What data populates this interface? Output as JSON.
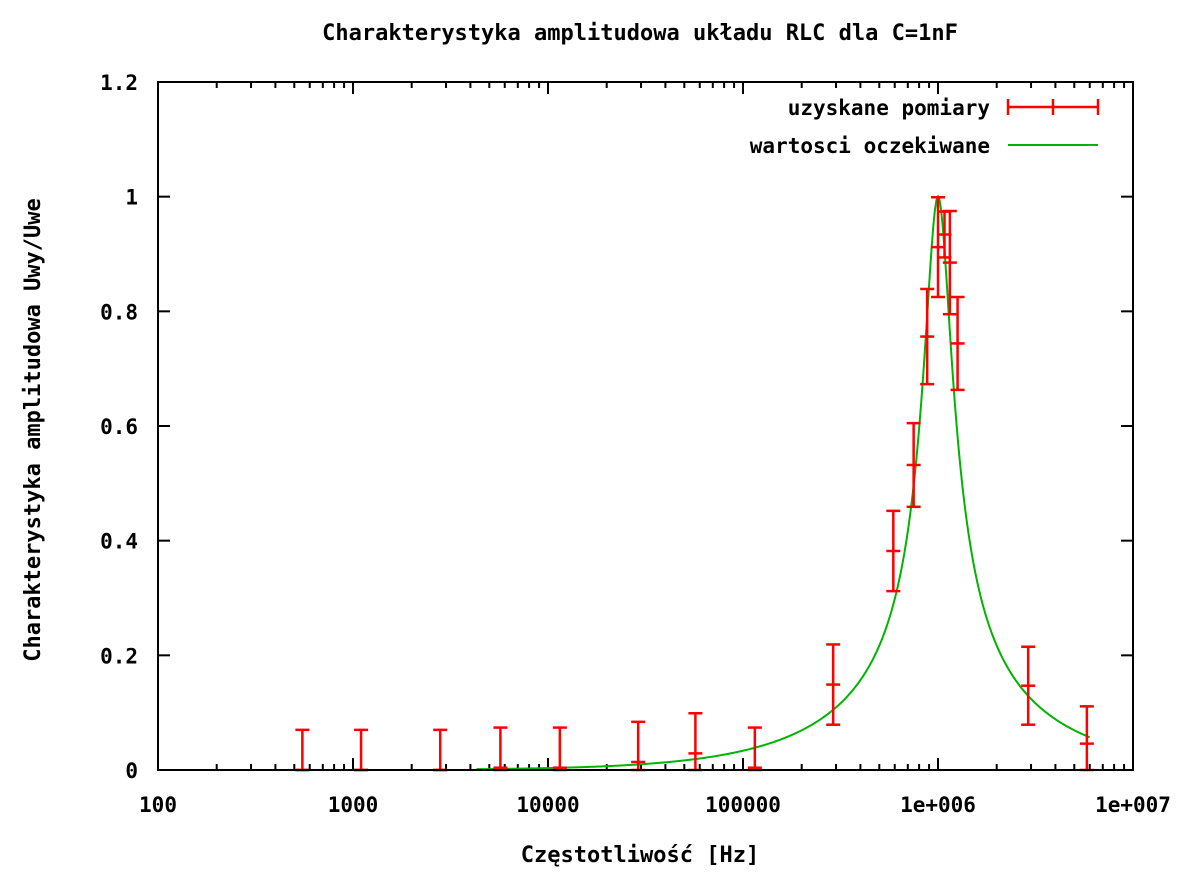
{
  "chart_data": {
    "type": "scatter",
    "title": "Charakterystyka amplitudowa układu RLC dla C=1nF",
    "xlabel": "Częstotliwość [Hz]",
    "ylabel": "Charakterystyka amplitudowa Uwy/Uwe",
    "x_scale": "log",
    "xlim": [
      100,
      10000000
    ],
    "ylim": [
      0,
      1.2
    ],
    "x_tick_labels": [
      "100",
      "1000",
      "10000",
      "100000",
      "1e+006",
      "1e+007"
    ],
    "y_tick_labels": [
      "0",
      "0.2",
      "0.4",
      "0.6",
      "0.8",
      "1",
      "1.2"
    ],
    "grid": false,
    "legend_position": "top-right",
    "series": [
      {
        "name": "uzyskane pomiary",
        "style": "errorbars",
        "color": "#ff0000",
        "points": [
          {
            "x": 550,
            "y": 0.0,
            "err": 0.07
          },
          {
            "x": 1100,
            "y": 0.0,
            "err": 0.07
          },
          {
            "x": 2800,
            "y": 0.0,
            "err": 0.07
          },
          {
            "x": 5700,
            "y": 0.004,
            "err": 0.07
          },
          {
            "x": 11500,
            "y": 0.004,
            "err": 0.07
          },
          {
            "x": 29000,
            "y": 0.014,
            "err": 0.07
          },
          {
            "x": 57000,
            "y": 0.029,
            "err": 0.07
          },
          {
            "x": 115000,
            "y": 0.004,
            "err": 0.07
          },
          {
            "x": 290000,
            "y": 0.149,
            "err": 0.07
          },
          {
            "x": 590000,
            "y": 0.382,
            "err": 0.07
          },
          {
            "x": 750000,
            "y": 0.532,
            "err": 0.073
          },
          {
            "x": 880000,
            "y": 0.756,
            "err": 0.083
          },
          {
            "x": 1000000,
            "y": 0.912,
            "err": 0.087
          },
          {
            "x": 1080000,
            "y": 0.934,
            "err": 0.04
          },
          {
            "x": 1150000,
            "y": 0.885,
            "err": 0.09
          },
          {
            "x": 1260000,
            "y": 0.744,
            "err": 0.081
          },
          {
            "x": 2900000,
            "y": 0.147,
            "err": 0.068
          },
          {
            "x": 5800000,
            "y": 0.046,
            "err": 0.065
          }
        ]
      },
      {
        "name": "wartosci oczekiwane",
        "style": "line",
        "color": "#00b400",
        "f0": 1000000,
        "Q": 3,
        "x_range": [
          4300,
          6000000
        ]
      }
    ]
  }
}
